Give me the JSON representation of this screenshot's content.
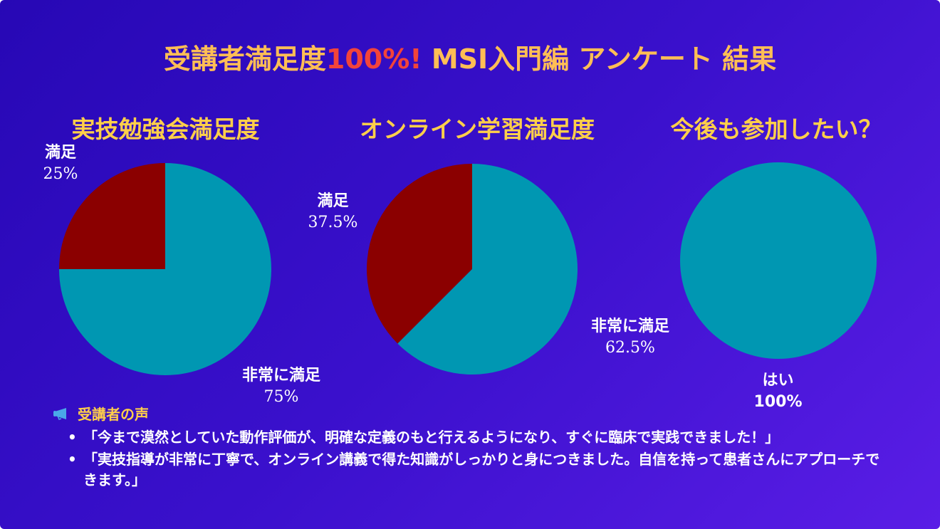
{
  "title": {
    "part1": "受講者満足度",
    "highlight": "100%!",
    "part2": " MSI入門編 アンケート 結果"
  },
  "colors": {
    "title": "#ffbe55",
    "highlight": "#f2443a",
    "heading": "#ffcf4a",
    "teal": "#0097b2",
    "darkred": "#8b0000"
  },
  "chart_data": [
    {
      "type": "pie",
      "title": "実技勉強会満足度",
      "slices": [
        {
          "label": "満足",
          "value": 25,
          "display": "25%",
          "color": "#8b0000"
        },
        {
          "label": "非常に満足",
          "value": 75,
          "display": "75%",
          "color": "#0097b2"
        }
      ]
    },
    {
      "type": "pie",
      "title": "オンライン学習満足度",
      "slices": [
        {
          "label": "満足",
          "value": 37.5,
          "display": "37.5%",
          "color": "#8b0000"
        },
        {
          "label": "非常に満足",
          "value": 62.5,
          "display": "62.5%",
          "color": "#0097b2"
        }
      ]
    },
    {
      "type": "pie",
      "title": "今後も参加したい？",
      "slices": [
        {
          "label": "はい",
          "value": 100,
          "display": "100%",
          "color": "#0097b2"
        }
      ]
    }
  ],
  "voices": {
    "icon": "megaphone-icon",
    "heading": "受講者の声",
    "items": [
      "「今まで漠然としていた動作評価が、明確な定義のもと行えるようになり、すぐに臨床で実践できました！」",
      "「実技指導が非常に丁寧で、オンライン講義で得た知識がしっかりと身につきました。自信を持って患者さんにアプローチできます。」"
    ]
  }
}
